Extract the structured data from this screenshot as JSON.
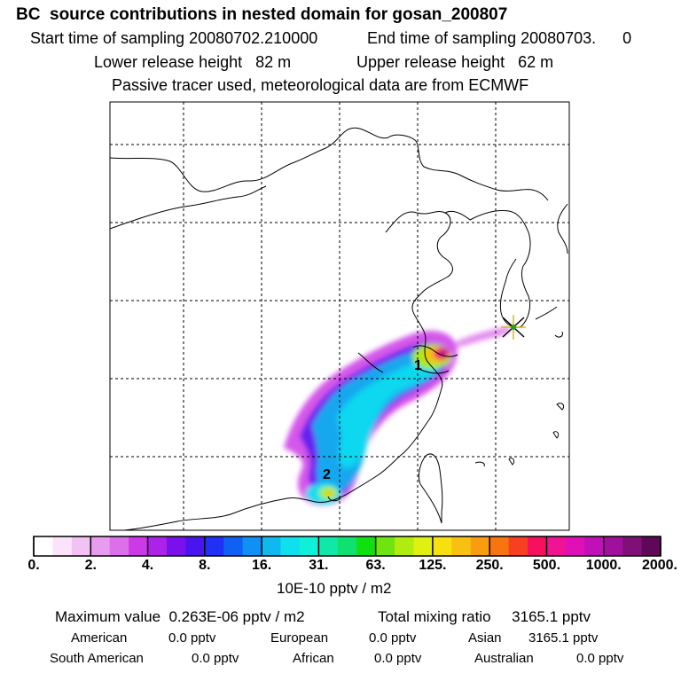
{
  "header": {
    "title": "BC  source contributions in nested domain for gosan_200807",
    "start_label": "Start time of sampling 20080702.210000",
    "end_label": "End time of sampling 20080703.      0",
    "lower_label": "Lower release height   82 m",
    "upper_label": "Upper release height   62 m",
    "note": "Passive tracer used, meteorological data are from ECMWF"
  },
  "map": {
    "markers": [
      {
        "label": "1"
      },
      {
        "label": "2"
      }
    ],
    "receptor_icon": "star-marker"
  },
  "colorbar": {
    "ticks": [
      "0.",
      "2.",
      "4.",
      "8.",
      "16.",
      "31.",
      "63.",
      "125.",
      "250.",
      "500.",
      "1000.",
      "2000."
    ],
    "colors": [
      "#ffffff",
      "#fbe4fb",
      "#f2c2f4",
      "#e79cee",
      "#dc70e8",
      "#cc3ae8",
      "#ac22e8",
      "#7a10ec",
      "#4a14f0",
      "#2030f4",
      "#1060f4",
      "#1090f4",
      "#10b8f0",
      "#10e0ee",
      "#10f0d8",
      "#10e8a8",
      "#10e070",
      "#10e010",
      "#70e410",
      "#b0ec10",
      "#e0f010",
      "#f8e010",
      "#f8c010",
      "#f89c10",
      "#f87410",
      "#f84020",
      "#f81060",
      "#f01494",
      "#e010b8",
      "#c010b8",
      "#a0109c",
      "#801078",
      "#600858"
    ],
    "unit": "10E-10 pptv / m2"
  },
  "stats": {
    "max_label": "Maximum value  0.263E-06 pptv / m2",
    "total_label": "Total mixing ratio     3165.1 pptv",
    "american_label": "American",
    "american_value": "0.0 pptv",
    "european_label": "European",
    "european_value": "0.0 pptv",
    "asian_label": "Asian",
    "asian_value": "3165.1 pptv",
    "southam_label": "South American",
    "southam_value": "0.0 pptv",
    "african_label": "African",
    "african_value": "0.0 pptv",
    "australian_label": "Australian",
    "australian_value": "0.0 pptv"
  }
}
